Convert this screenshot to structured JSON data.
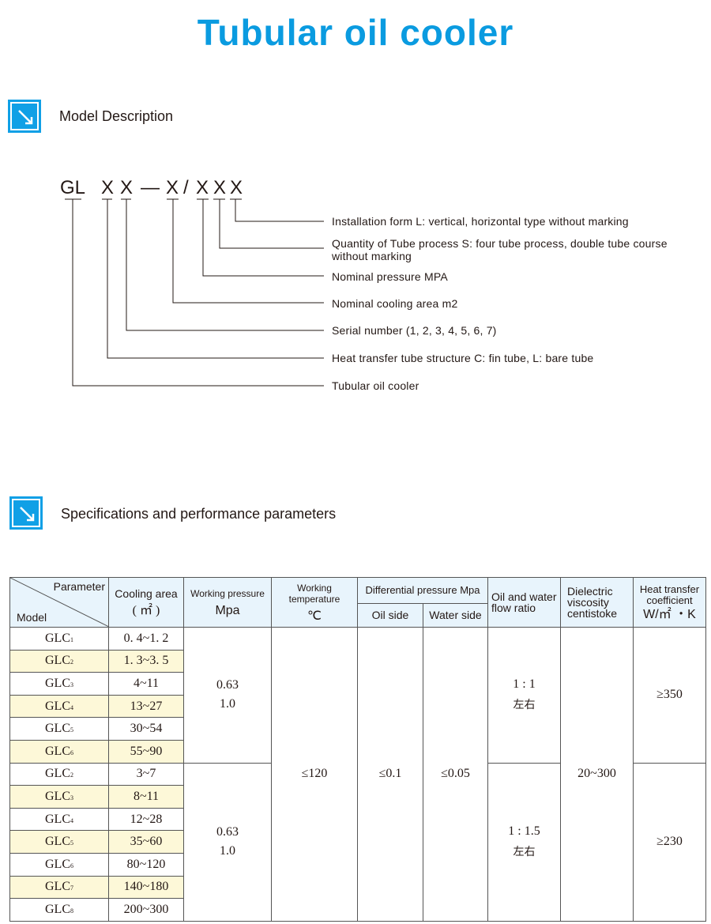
{
  "title": "Tubular oil cooler",
  "sections": {
    "model_description": "Model Description",
    "specifications": "Specifications and performance parameters"
  },
  "icons": {
    "section_icon": "arrow-down-right-icon",
    "accent": "#10a0e6"
  },
  "code": {
    "prefix": "GL",
    "chars": [
      "X",
      "X",
      "—",
      "X",
      "/",
      "X",
      "X",
      "X"
    ]
  },
  "descriptions": [
    "Installation form L: vertical, horizontal type without marking",
    "Quantity of Tube process S: four tube process, double tube course without marking",
    "Nominal pressure MPA",
    "Nominal cooling area m2",
    "Serial number (1, 2, 3, 4, 5, 6, 7)",
    "Heat transfer tube structure C: fin tube, L: bare tube",
    "Tubular oil cooler"
  ],
  "table": {
    "headers": {
      "parameter": "Parameter",
      "model": "Model",
      "cooling_area": "Cooling area",
      "cooling_area_unit": "( ㎡ )",
      "working_pressure": "Working pressure",
      "working_pressure_unit": "Mpa",
      "working_temperature": "Working temperature",
      "working_temperature_unit": "℃",
      "diff_pressure": "Differential pressure Mpa",
      "oil_side": "Oil side",
      "water_side": "Water side",
      "flow_ratio": "Oil and water flow ratio",
      "viscosity": "Dielectric viscosity centistoke",
      "heat_transfer": "Heat transfer coefficient",
      "heat_transfer_unit": "W/㎡ ・K"
    },
    "rows": [
      {
        "model": "GLC",
        "sub": "1",
        "area": "0. 4~1. 2"
      },
      {
        "model": "GLC",
        "sub": "2",
        "area": "1. 3~3. 5"
      },
      {
        "model": "GLC",
        "sub": "3",
        "area": "4~11"
      },
      {
        "model": "GLC",
        "sub": "4",
        "area": "13~27"
      },
      {
        "model": "GLC",
        "sub": "5",
        "area": "30~54"
      },
      {
        "model": "GLC",
        "sub": "6",
        "area": "55~90"
      },
      {
        "model": "GLC",
        "sub": "2",
        "area": "3~7"
      },
      {
        "model": "GLC",
        "sub": "3",
        "area": "8~11"
      },
      {
        "model": "GLC",
        "sub": "4",
        "area": "12~28"
      },
      {
        "model": "GLC",
        "sub": "5",
        "area": "35~60"
      },
      {
        "model": "GLC",
        "sub": "6",
        "area": "80~120"
      },
      {
        "model": "GLC",
        "sub": "7",
        "area": "140~180"
      },
      {
        "model": "GLC",
        "sub": "8",
        "area": "200~300"
      }
    ],
    "groups": [
      {
        "pressure_1": "0.63",
        "pressure_2": "1.0",
        "ratio": "1 : 1",
        "ratio_note": "左右",
        "heat": "≥350"
      },
      {
        "pressure_1": "0.63",
        "pressure_2": "1.0",
        "ratio": "1 : 1.5",
        "ratio_note": "左右",
        "heat": "≥230"
      }
    ],
    "temperature": "≤120",
    "oil_side": "≤0.1",
    "water_side": "≤0.05",
    "viscosity": "20~300"
  }
}
